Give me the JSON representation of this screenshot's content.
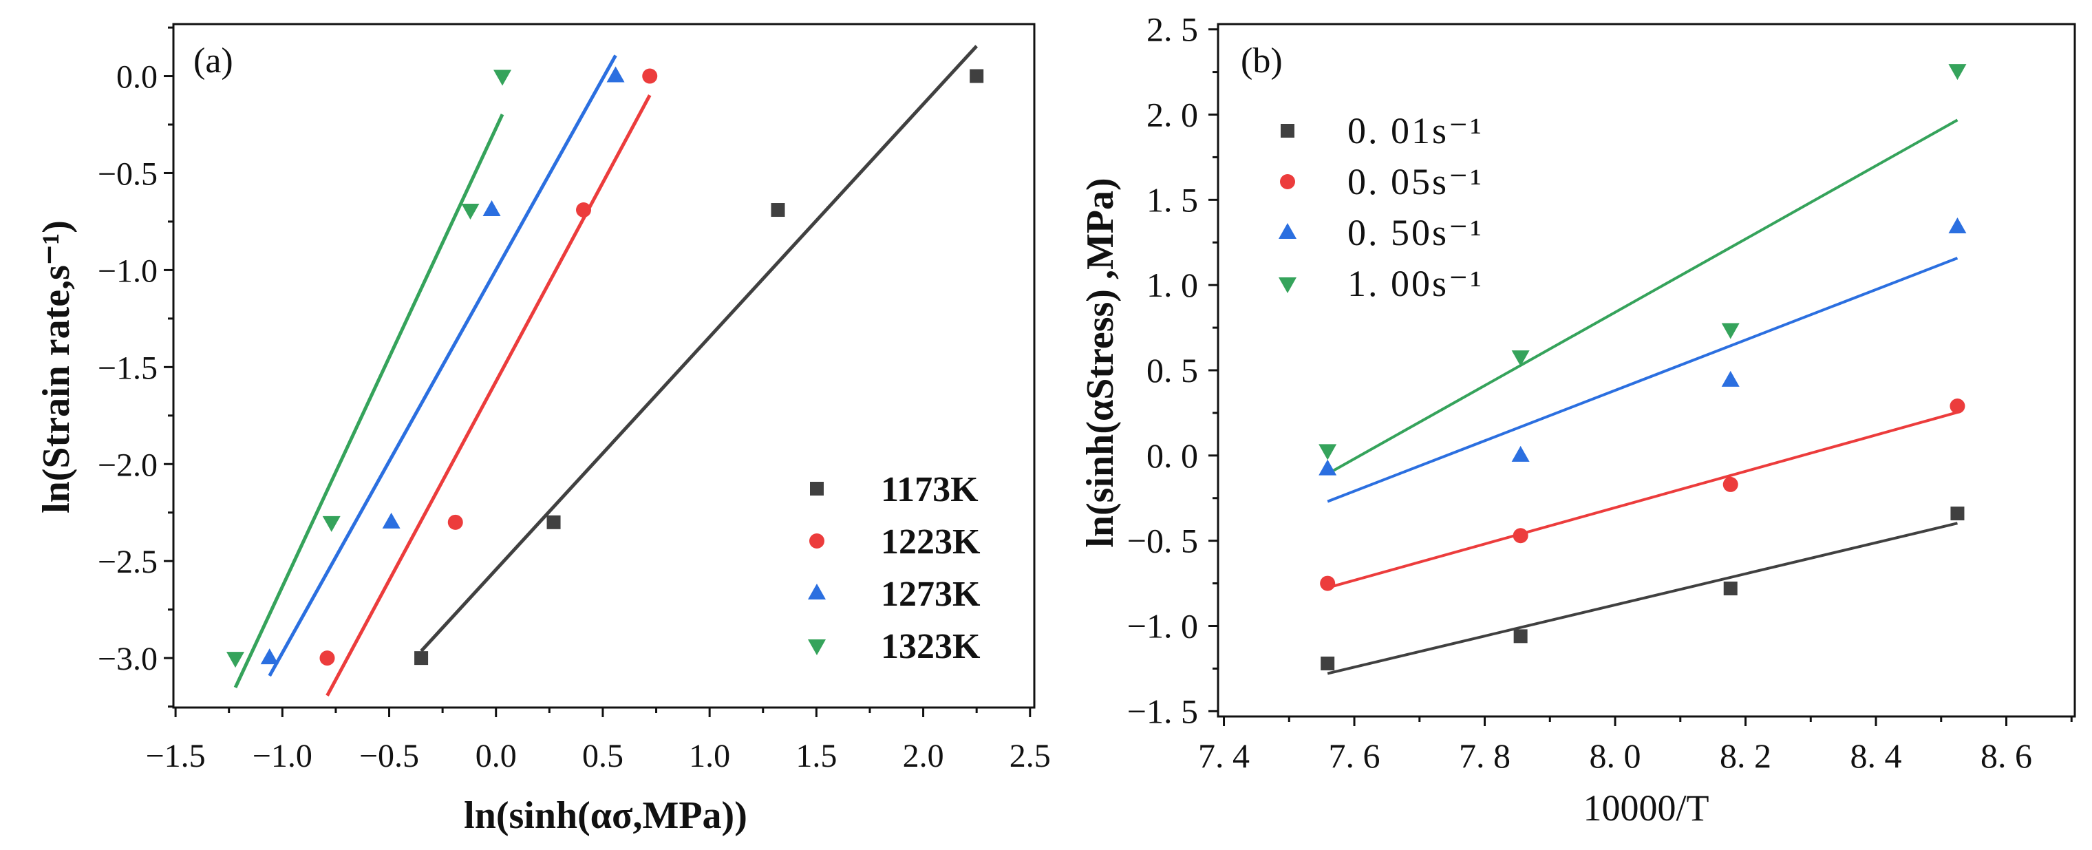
{
  "chart_data": [
    {
      "type": "scatter",
      "panel_label": "(a)",
      "xlabel": "ln(sinh(ασ,MPa))",
      "ylabel": "ln(Strain rate,s⁻¹)",
      "xlim": [
        -1.51,
        2.52
      ],
      "ylim": [
        -3.255,
        0.268
      ],
      "xticks": [
        -1.5,
        -1.0,
        -0.5,
        0.0,
        0.5,
        1.0,
        1.5,
        2.0,
        2.5
      ],
      "xtick_labels": [
        "−1.5",
        "−1.0",
        "−0.5",
        "0.0",
        "0.5",
        "1.0",
        "1.5",
        "2.0",
        "2.5"
      ],
      "x_minor_step": 0.25,
      "yticks": [
        0.0,
        -0.5,
        -1.0,
        -1.5,
        -2.0,
        -2.5,
        -3.0
      ],
      "ytick_labels": [
        "0.0",
        "−0.5",
        "−1.0",
        "−1.5",
        "−2.0",
        "−2.5",
        "−3.0"
      ],
      "y_minor_step": 0.25,
      "grid": false,
      "legend_position": "bottom-right",
      "series": [
        {
          "name": "1173K",
          "marker": "square",
          "color": "#404040",
          "fit_line": true,
          "x": [
            -0.35,
            0.27,
            1.32,
            2.25
          ],
          "y": [
            -3.0,
            -2.3,
            -0.69,
            0.0
          ]
        },
        {
          "name": "1223K",
          "marker": "circle",
          "color": "#ec3c3c",
          "fit_line": true,
          "x": [
            -0.79,
            -0.19,
            0.41,
            0.72
          ],
          "y": [
            -3.0,
            -2.3,
            -0.69,
            0.0
          ]
        },
        {
          "name": "1273K",
          "marker": "triangle-up",
          "color": "#2b6fe0",
          "fit_line": true,
          "x": [
            -1.06,
            -0.49,
            -0.02,
            0.56
          ],
          "y": [
            -3.0,
            -2.3,
            -0.69,
            0.0
          ]
        },
        {
          "name": "1323K",
          "marker": "triangle-down",
          "color": "#35a35b",
          "fit_line": true,
          "x": [
            -1.22,
            -0.77,
            -0.12,
            0.03
          ],
          "y": [
            -3.0,
            -2.3,
            -0.69,
            0.0
          ]
        }
      ]
    },
    {
      "type": "scatter",
      "panel_label": "(b)",
      "xlabel": "10000/T",
      "ylabel": "ln(sinh(αStress) ,MPa)",
      "xlim": [
        7.391,
        8.705
      ],
      "ylim": [
        -1.531,
        2.531
      ],
      "xticks": [
        7.4,
        7.6,
        7.8,
        8.0,
        8.2,
        8.4,
        8.6
      ],
      "xtick_labels": [
        "7. 4",
        "7. 6",
        "7. 8",
        "8. 0",
        "8. 2",
        "8. 4",
        "8. 6"
      ],
      "x_minor_step": 0.1,
      "yticks": [
        2.5,
        2.0,
        1.5,
        1.0,
        0.5,
        0.0,
        -0.5,
        -1.0,
        -1.5
      ],
      "ytick_labels": [
        "2. 5",
        "2. 0",
        "1. 5",
        "1. 0",
        "0. 5",
        "0. 0",
        "−0. 5",
        "−1. 0",
        "−1. 5"
      ],
      "y_minor_step": 0.25,
      "grid": false,
      "legend_position": "top-left",
      "series": [
        {
          "name": "0. 01s⁻¹",
          "marker": "square",
          "color": "#404040",
          "fit_line": true,
          "x": [
            7.559,
            7.855,
            8.177,
            8.525
          ],
          "y": [
            -1.22,
            -1.06,
            -0.78,
            -0.34
          ]
        },
        {
          "name": "0. 05s⁻¹",
          "marker": "circle",
          "color": "#ec3c3c",
          "fit_line": true,
          "x": [
            7.559,
            7.855,
            8.177,
            8.525
          ],
          "y": [
            -0.75,
            -0.47,
            -0.17,
            0.29
          ]
        },
        {
          "name": "0. 50s⁻¹",
          "marker": "triangle-up",
          "color": "#2b6fe0",
          "fit_line": true,
          "x": [
            7.559,
            7.855,
            8.177,
            8.525
          ],
          "y": [
            -0.08,
            0.0,
            0.44,
            1.34
          ]
        },
        {
          "name": "1. 00s⁻¹",
          "marker": "triangle-down",
          "color": "#35a35b",
          "fit_line": true,
          "x": [
            7.559,
            7.855,
            8.177,
            8.525
          ],
          "y": [
            0.03,
            0.58,
            0.74,
            2.26
          ]
        }
      ]
    }
  ]
}
